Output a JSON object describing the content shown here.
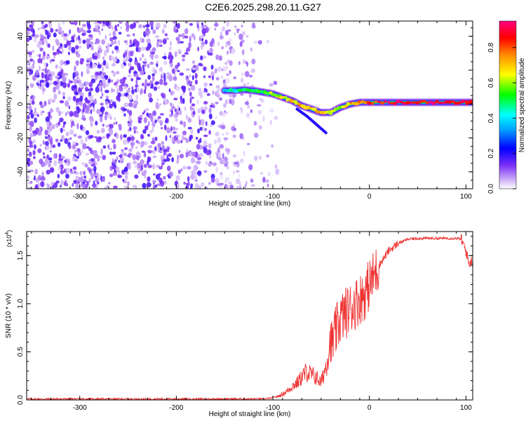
{
  "title": "C2E6.2025.298.20.11.G27",
  "chart_data": [
    {
      "type": "heatmap",
      "xlabel": "Height of straight line (km)",
      "ylabel": "Frequency (Hz)",
      "xlim": [
        -355,
        107
      ],
      "ylim": [
        -50,
        49
      ],
      "xticks": [
        -300,
        -200,
        -100,
        0,
        100
      ],
      "yticks": [
        -40,
        -20,
        0,
        20,
        40
      ],
      "noise_region": {
        "x_from": -355,
        "x_to": -95
      },
      "ridge": {
        "x": [
          -150,
          -140,
          -130,
          -120,
          -110,
          -100,
          -90,
          -80,
          -70,
          -60,
          -50,
          -40,
          -30,
          -20,
          -10,
          0,
          20,
          40,
          60,
          80,
          100,
          107
        ],
        "y": [
          8,
          8,
          8.5,
          8,
          7,
          6,
          4,
          2,
          -1,
          -3,
          -5,
          -5,
          -2,
          0,
          1,
          1,
          1,
          1,
          1,
          1,
          1,
          1
        ],
        "amplitude": [
          0.35,
          0.45,
          0.55,
          0.5,
          0.5,
          0.6,
          0.65,
          0.7,
          0.7,
          0.65,
          0.75,
          0.6,
          0.6,
          0.7,
          0.75,
          0.8,
          0.9,
          0.9,
          0.9,
          0.9,
          0.9,
          0.85
        ]
      },
      "colorbar": {
        "label": "Normalized spectral amplitude",
        "ticks": [
          0.0,
          0.2,
          0.4,
          0.6,
          0.8
        ],
        "tick_labels": [
          "0.0",
          "0.2",
          "0.4",
          "0.6",
          "0.8"
        ],
        "range": [
          0,
          0.95
        ],
        "colors": [
          "#ffffff",
          "#7b2ff7",
          "#0000ff",
          "#00ffff",
          "#00ff00",
          "#ffff00",
          "#ff8800",
          "#ff0000",
          "#ff0080"
        ]
      }
    },
    {
      "type": "line",
      "xlabel": "Height of straight line (km)",
      "ylabel": "SNR (10 * v/v)",
      "y_multiplier_label": "(x10",
      "y_multiplier_exp": "4",
      "y_multiplier_close": ")",
      "xlim": [
        -355,
        107
      ],
      "ylim": [
        0,
        1.75
      ],
      "xticks": [
        -300,
        -200,
        -100,
        0,
        100
      ],
      "yticks": [
        0.0,
        0.5,
        1.0,
        1.5
      ],
      "ytick_labels": [
        "0.0",
        "0.5",
        "1.0",
        "1.5"
      ],
      "color": "#ee3333",
      "series": [
        {
          "x": [
            -355,
            -300,
            -250,
            -200,
            -150,
            -110,
            -100,
            -95,
            -90,
            -85,
            -80,
            -75,
            -70,
            -65,
            -60,
            -55,
            -50,
            -45,
            -40,
            -35,
            -30,
            -25,
            -20,
            -15,
            -10,
            -5,
            0,
            5,
            10,
            20,
            30,
            40,
            50,
            60,
            70,
            80,
            90,
            95,
            100,
            103,
            107
          ],
          "y": [
            0.01,
            0.01,
            0.01,
            0.01,
            0.01,
            0.01,
            0.02,
            0.03,
            0.05,
            0.08,
            0.12,
            0.15,
            0.2,
            0.25,
            0.22,
            0.2,
            0.15,
            0.3,
            0.55,
            0.7,
            0.85,
            0.9,
            0.95,
            1.0,
            1.05,
            1.1,
            1.2,
            1.3,
            1.4,
            1.55,
            1.63,
            1.67,
            1.68,
            1.68,
            1.68,
            1.68,
            1.68,
            1.67,
            1.55,
            1.42,
            1.45
          ]
        }
      ]
    }
  ]
}
